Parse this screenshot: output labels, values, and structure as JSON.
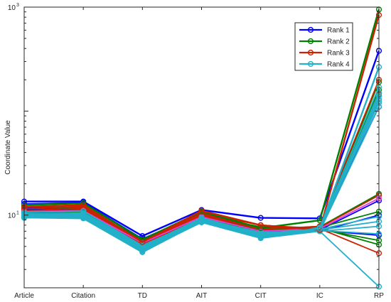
{
  "chart_data": {
    "type": "line",
    "subtype": "parallel-coordinates",
    "categories": [
      "Article",
      "Citation",
      "TD",
      "AIT",
      "CIT",
      "IC",
      "RP"
    ],
    "ylabel": "Coordinate Value",
    "yscale": "log",
    "ylim": [
      2,
      1000
    ],
    "yticks": [
      {
        "value": 10,
        "label": "10",
        "exp": "1"
      },
      {
        "value": 1000,
        "label": "10",
        "exp": "3"
      }
    ],
    "grid": false,
    "legend_position": "top-right",
    "series": [
      {
        "name": "Rank 1",
        "color": "#0000ff",
        "values": [
          13.5,
          13.5,
          6.3,
          11.2,
          9.4,
          9.3,
          380
        ]
      },
      {
        "name": "Rank 2",
        "color": "#008000",
        "values": [
          12.5,
          13.0,
          5.8,
          10.8,
          7.5,
          8.9,
          950
        ]
      },
      {
        "name": "Rank 3",
        "color": "#cc2200",
        "values": [
          12.0,
          12.5,
          5.5,
          11.0,
          8.0,
          7.2,
          840
        ]
      },
      {
        "name": "Rank 4",
        "color": "#23b0c8",
        "values": [
          9.5,
          9.3,
          4.4,
          8.7,
          6.5,
          7.4,
          265
        ]
      }
    ],
    "extra_lines": [
      {
        "color": "#0000ff",
        "values": [
          12.8,
          13.2,
          5.9,
          10.5,
          7.2,
          7.1,
          6.4
        ]
      },
      {
        "color": "#0000ff",
        "values": [
          11.8,
          12.0,
          5.7,
          10.2,
          7.0,
          7.0,
          10.0
        ]
      },
      {
        "color": "#0000ff",
        "values": [
          11.2,
          11.8,
          5.6,
          10.3,
          6.9,
          7.2,
          13.8
        ]
      },
      {
        "color": "#0000ff",
        "values": [
          10.8,
          11.5,
          5.4,
          9.8,
          6.7,
          7.3,
          110
        ]
      },
      {
        "color": "#008000",
        "values": [
          11.5,
          12.0,
          5.5,
          10.0,
          7.7,
          7.6,
          10.8
        ]
      },
      {
        "color": "#008000",
        "values": [
          11.0,
          11.2,
          5.3,
          9.6,
          7.1,
          7.3,
          5.7
        ]
      },
      {
        "color": "#008000",
        "values": [
          10.5,
          11.5,
          5.2,
          9.3,
          6.8,
          7.5,
          5.2
        ]
      },
      {
        "color": "#008000",
        "values": [
          10.8,
          11.0,
          5.4,
          9.5,
          7.2,
          7.8,
          160
        ]
      },
      {
        "color": "#008000",
        "values": [
          10.2,
          10.8,
          5.1,
          9.2,
          6.6,
          7.5,
          190
        ]
      },
      {
        "color": "#008000",
        "values": [
          10.6,
          11.3,
          5.6,
          9.4,
          7.0,
          7.7,
          16.0
        ]
      },
      {
        "color": "#cc2200",
        "values": [
          11.5,
          12.2,
          5.6,
          10.4,
          8.0,
          7.4,
          4.3
        ]
      },
      {
        "color": "#cc2200",
        "values": [
          11.0,
          11.8,
          5.4,
          10.2,
          7.5,
          7.5,
          145
        ]
      },
      {
        "color": "#cc2200",
        "values": [
          10.7,
          11.4,
          5.3,
          9.9,
          7.3,
          7.8,
          200
        ]
      },
      {
        "color": "#cc2200",
        "values": [
          10.4,
          11.0,
          5.2,
          9.7,
          7.0,
          7.6,
          15.5
        ]
      },
      {
        "color": "#e040e0",
        "values": [
          10.8,
          11.0,
          5.4,
          9.6,
          7.0,
          7.4,
          14.5
        ]
      },
      {
        "color": "#23b0c8",
        "values": [
          10.2,
          10.5,
          5.0,
          9.4,
          6.6,
          7.5,
          170
        ]
      },
      {
        "color": "#23b0c8",
        "values": [
          10.0,
          10.3,
          4.9,
          9.0,
          6.5,
          7.2,
          150
        ]
      },
      {
        "color": "#23b0c8",
        "values": [
          10.6,
          10.9,
          5.1,
          9.2,
          6.8,
          7.1,
          140
        ]
      },
      {
        "color": "#23b0c8",
        "values": [
          9.9,
          10.0,
          4.8,
          8.9,
          6.4,
          7.6,
          130
        ]
      },
      {
        "color": "#23b0c8",
        "values": [
          10.3,
          10.1,
          5.0,
          9.1,
          6.6,
          7.5,
          125
        ]
      },
      {
        "color": "#23b0c8",
        "values": [
          9.7,
          9.8,
          4.7,
          8.8,
          6.3,
          7.4,
          120
        ]
      },
      {
        "color": "#23b0c8",
        "values": [
          10.1,
          10.4,
          5.0,
          9.0,
          6.7,
          7.0,
          110
        ]
      },
      {
        "color": "#23b0c8",
        "values": [
          9.8,
          9.7,
          4.9,
          8.9,
          6.2,
          7.3,
          9.7
        ]
      },
      {
        "color": "#23b0c8",
        "values": [
          9.6,
          9.5,
          4.6,
          8.8,
          6.4,
          7.2,
          8.7
        ]
      },
      {
        "color": "#23b0c8",
        "values": [
          9.9,
          10.0,
          4.8,
          9.0,
          6.3,
          7.0,
          7.8
        ]
      },
      {
        "color": "#23b0c8",
        "values": [
          9.4,
          9.6,
          4.7,
          8.6,
          6.1,
          7.1,
          6.6
        ]
      },
      {
        "color": "#23b0c8",
        "values": [
          9.5,
          9.4,
          4.5,
          8.5,
          6.0,
          7.0,
          2.05
        ]
      }
    ]
  }
}
